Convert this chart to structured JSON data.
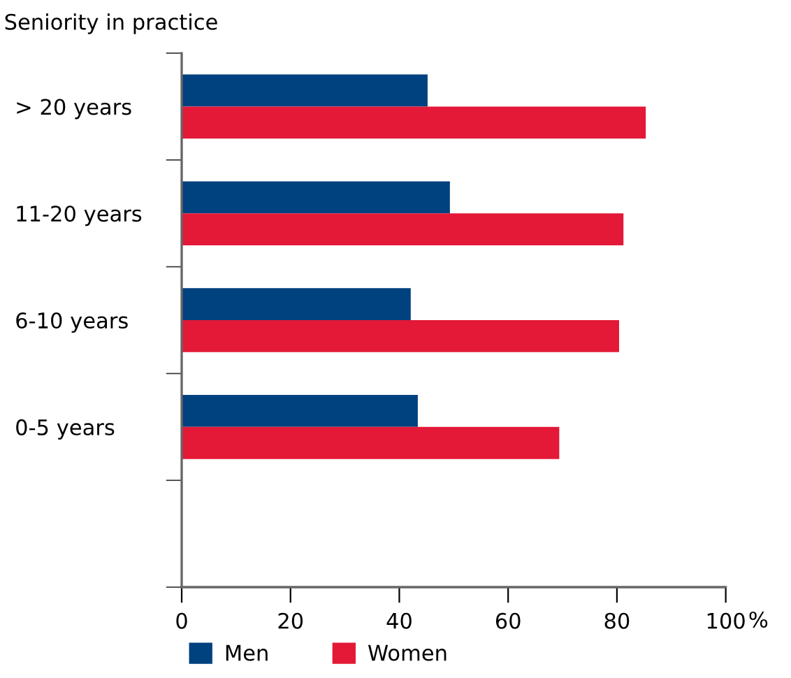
{
  "chart_data": {
    "type": "bar",
    "orientation": "horizontal",
    "title": "Seniority in practice",
    "xlabel": "%",
    "categories": [
      "> 20 years",
      "11-20 years",
      "6-10 years",
      "0-5 years",
      null
    ],
    "series": [
      {
        "name": "Men",
        "color": "#00417f",
        "values": [
          45.2,
          49.3,
          42.1,
          43.4,
          null
        ]
      },
      {
        "name": "Women",
        "color": "#e31937",
        "values": [
          85.3,
          81.2,
          80.4,
          69.4,
          null
        ]
      }
    ],
    "xlim": [
      0,
      100
    ],
    "xticks": [
      0,
      20,
      40,
      60,
      80,
      100
    ],
    "grid": false,
    "legend": "bottom left"
  }
}
